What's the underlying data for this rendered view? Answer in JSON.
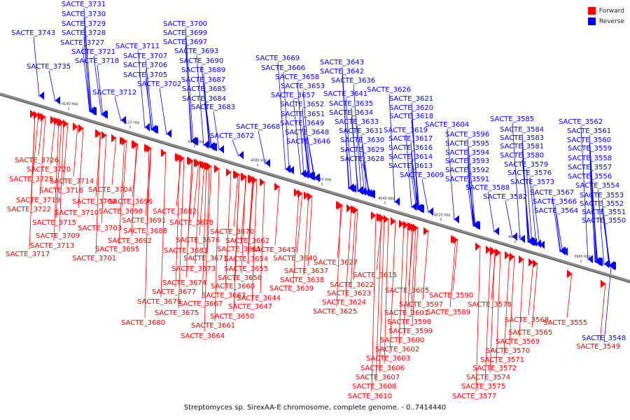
{
  "legend": {
    "forward_label": "Forward",
    "reverse_label": "Reverse",
    "forward_color": "#ff0000",
    "reverse_color": "#0000ff"
  },
  "caption": "Streptomyces sp. SirexAA-E chromosome, complete genome. - 0..7414440",
  "axis_ticks": [
    "4140 kbp",
    "4120 kbp",
    "4100 kbp",
    "4080 kbp",
    "4060 kbp",
    "4040 kbp",
    "4020 kbp",
    "4000 kbp",
    "3980 kbp"
  ],
  "reverse_genes": [
    "SACTE_3743",
    "SACTE_3735",
    "SACTE_3731",
    "SACTE_3730",
    "SACTE_3729",
    "SACTE_3728",
    "SACTE_3727",
    "SACTE_3721",
    "SACTE_3718",
    "SACTE_3712",
    "SACTE_3711",
    "SACTE_3707",
    "SACTE_3706",
    "SACTE_3705",
    "SACTE_3702",
    "SACTE_3700",
    "SACTE_3699",
    "SACTE_3697",
    "SACTE_3693",
    "SACTE_3690",
    "SACTE_3689",
    "SACTE_3687",
    "SACTE_3685",
    "SACTE_3684",
    "SACTE_3683",
    "SACTE_3672",
    "SACTE_3668",
    "SACTE_3669",
    "SACTE_3666",
    "SACTE_3658",
    "SACTE_3653",
    "SACTE_3657",
    "SACTE_3652",
    "SACTE_3651",
    "SACTE_3649",
    "SACTE_3648",
    "SACTE_3646",
    "SACTE_3643",
    "SACTE_3642",
    "SACTE_3636",
    "SACTE_3641",
    "SACTE_3635",
    "SACTE_3634",
    "SACTE_3633",
    "SACTE_3631",
    "SACTE_3630",
    "SACTE_3629",
    "SACTE_3628",
    "SACTE_3626",
    "SACTE_3621",
    "SACTE_3620",
    "SACTE_3618",
    "SACTE_3619",
    "SACTE_3617",
    "SACTE_3616",
    "SACTE_3614",
    "SACTE_3613",
    "SACTE_3609",
    "SACTE_3604",
    "SACTE_3596",
    "SACTE_3595",
    "SACTE_3594",
    "SACTE_3593",
    "SACTE_3592",
    "SACTE_3591",
    "SACTE_3588",
    "SACTE_3582",
    "SACTE_3585",
    "SACTE_3584",
    "SACTE_3583",
    "SACTE_3581",
    "SACTE_3580",
    "SACTE_3579",
    "SACTE_3576",
    "SACTE_3573",
    "SACTE_3567",
    "SACTE_3566",
    "SACTE_3564",
    "SACTE_3562",
    "SACTE_3561",
    "SACTE_3560",
    "SACTE_3559",
    "SACTE_3558",
    "SACTE_3557",
    "SACTE_3556",
    "SACTE_3554",
    "SACTE_3553",
    "SACTE_3552",
    "SACTE_3551",
    "SACTE_3550",
    "SACTE_3548"
  ],
  "forward_genes": [
    "SACTE_3726",
    "SACTE_3720",
    "SACTE_3725",
    "SACTE_3714",
    "SACTE_3716",
    "SACTE_3719",
    "SACTE_3722",
    "SACTE_3710",
    "SACTE_3715",
    "SACTE_3709",
    "SACTE_3713",
    "SACTE_3717",
    "SACTE_3704",
    "SACTE_3708",
    "SACTE_3696",
    "SACTE_3698",
    "SACTE_3703",
    "SACTE_3691",
    "SACTE_3688",
    "SACTE_3692",
    "SACTE_3695",
    "SACTE_3701",
    "SACTE_3682",
    "SACTE_3678",
    "SACTE_3670",
    "SACTE_3676",
    "SACTE_3681",
    "SACTE_3671",
    "SACTE_3673",
    "SACTE_3674",
    "SACTE_3677",
    "SACTE_3679",
    "SACTE_3675",
    "SACTE_3680",
    "SACTE_3662",
    "SACTE_3665",
    "SACTE_3645",
    "SACTE_3654",
    "SACTE_3655",
    "SACTE_3656",
    "SACTE_3660",
    "SACTE_3663",
    "SACTE_3667",
    "SACTE_3647",
    "SACTE_3650",
    "SACTE_3661",
    "SACTE_3664",
    "SACTE_3640",
    "SACTE_3637",
    "SACTE_3638",
    "SACTE_3639",
    "SACTE_3644",
    "SACTE_3627",
    "SACTE_3615",
    "SACTE_3622",
    "SACTE_3623",
    "SACTE_3624",
    "SACTE_3625",
    "SACTE_3605",
    "SACTE_3597",
    "SACTE_3601",
    "SACTE_3598",
    "SACTE_3599",
    "SACTE_3600",
    "SACTE_3602",
    "SACTE_3603",
    "SACTE_3606",
    "SACTE_3607",
    "SACTE_3608",
    "SACTE_3610",
    "SACTE_3590",
    "SACTE_3589",
    "SACTE_3578",
    "SACTE_3568",
    "SACTE_3565",
    "SACTE_3569",
    "SACTE_3570",
    "SACTE_3571",
    "SACTE_3572",
    "SACTE_3574",
    "SACTE_3575",
    "SACTE_3577",
    "SACTE_3555",
    "SACTE_3549"
  ]
}
